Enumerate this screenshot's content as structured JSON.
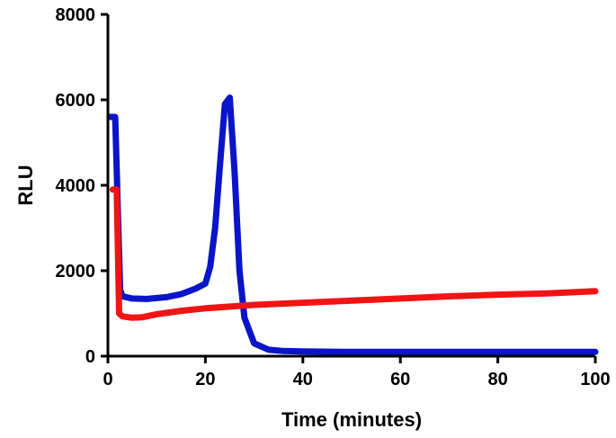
{
  "chart_data": {
    "type": "line",
    "xlabel": "Time (minutes)",
    "ylabel": "RLU",
    "xlim": [
      0,
      100
    ],
    "ylim": [
      0,
      8000
    ],
    "xticks": [
      0,
      20,
      40,
      60,
      80,
      100
    ],
    "yticks": [
      0,
      2000,
      4000,
      6000,
      8000
    ],
    "grid": false,
    "legend": "none",
    "series": [
      {
        "color": "#0a14c8",
        "x": [
          0.5,
          1.5,
          2.5,
          3,
          5,
          8,
          12,
          15,
          18,
          20,
          21,
          22,
          23,
          24,
          25,
          26,
          27,
          28,
          30,
          33,
          36,
          40,
          50,
          60,
          70,
          80,
          90,
          100
        ],
        "y": [
          5600,
          5600,
          1550,
          1400,
          1350,
          1340,
          1380,
          1450,
          1580,
          1700,
          2100,
          3000,
          4500,
          5900,
          6050,
          4300,
          2000,
          900,
          300,
          150,
          120,
          110,
          100,
          100,
          100,
          100,
          100,
          100
        ]
      },
      {
        "color": "#f01414",
        "x": [
          1,
          1.8,
          2.3,
          3,
          5,
          7,
          10,
          15,
          20,
          30,
          40,
          50,
          60,
          70,
          80,
          90,
          100
        ],
        "y": [
          3900,
          3900,
          1000,
          930,
          900,
          910,
          980,
          1060,
          1120,
          1200,
          1250,
          1300,
          1350,
          1400,
          1440,
          1470,
          1520
        ]
      }
    ]
  }
}
